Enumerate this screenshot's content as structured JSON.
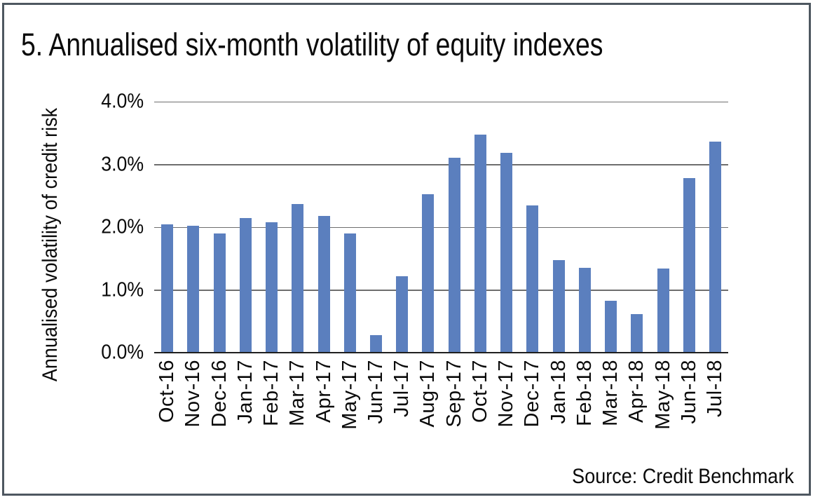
{
  "header": {
    "title": "5. Annualised six-month volatility of equity indexes"
  },
  "footer": {
    "source": "Source: Credit Benchmark"
  },
  "chart_data": {
    "type": "bar",
    "title": "5. Annualised six-month volatility of equity indexes",
    "xlabel": "",
    "ylabel": "Annualised volatility of credit risk",
    "ylim": [
      0,
      4
    ],
    "ytick_labels": [
      "0.0%",
      "1.0%",
      "2.0%",
      "3.0%",
      "4.0%"
    ],
    "grid": true,
    "legend": false,
    "categories": [
      "Oct-16",
      "Nov-16",
      "Dec-16",
      "Jan-17",
      "Feb-17",
      "Mar-17",
      "Apr-17",
      "May-17",
      "Jun-17",
      "Jul-17",
      "Aug-17",
      "Sep-17",
      "Oct-17",
      "Nov-17",
      "Dec-17",
      "Jan-18",
      "Feb-18",
      "Mar-18",
      "Apr-18",
      "May-18",
      "Jun-18",
      "Jul-18"
    ],
    "values": [
      2.05,
      2.02,
      1.9,
      2.14,
      2.08,
      2.37,
      2.18,
      1.9,
      0.28,
      1.22,
      2.52,
      3.11,
      3.47,
      3.18,
      2.35,
      1.47,
      1.35,
      0.83,
      0.62,
      1.34,
      2.78,
      3.36
    ],
    "units": "%",
    "colors": {
      "bar": "#5B7FBE",
      "gridline": "#6E6E6E",
      "axis_line": "#1F1F1F",
      "frame_border": "#4E5760",
      "text": "#0A0A0A",
      "background": "#FFFFFF"
    }
  }
}
